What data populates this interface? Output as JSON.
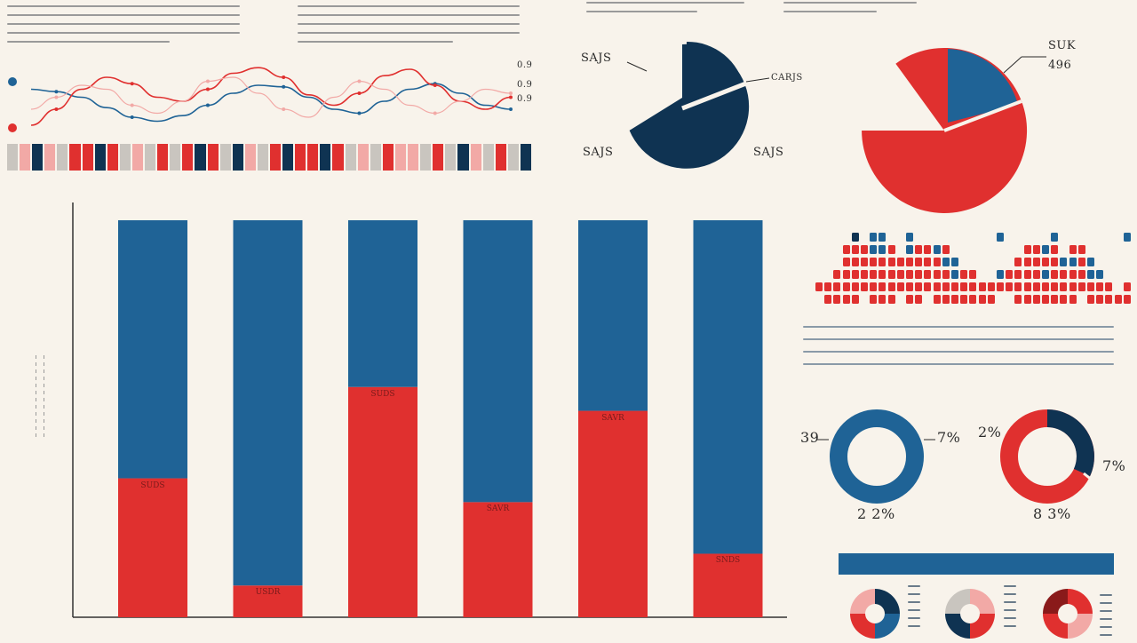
{
  "palette": {
    "navy": "#0f3352",
    "blue": "#1f6396",
    "red": "#e0302f",
    "pink": "#f2a9a6",
    "gray": "#c9c5bf",
    "bg": "#f8f3eb"
  },
  "chart_data": [
    {
      "type": "line",
      "id": "top-line-chart",
      "legend_markers": [
        "blue",
        "red"
      ],
      "legend_labels": [
        "0.9",
        "0.9",
        "0.9"
      ],
      "series": [
        {
          "color": "#1f6396",
          "values": [
            0.55,
            0.52,
            0.45,
            0.32,
            0.2,
            0.15,
            0.22,
            0.35,
            0.5,
            0.6,
            0.58,
            0.45,
            0.3,
            0.25,
            0.4,
            0.55,
            0.62,
            0.5,
            0.35,
            0.3
          ]
        },
        {
          "color": "#e0302f",
          "values": [
            0.1,
            0.3,
            0.55,
            0.7,
            0.62,
            0.45,
            0.4,
            0.55,
            0.75,
            0.82,
            0.7,
            0.48,
            0.35,
            0.5,
            0.72,
            0.8,
            0.6,
            0.4,
            0.3,
            0.45
          ]
        },
        {
          "color": "#f2a9a6",
          "values": [
            0.3,
            0.45,
            0.6,
            0.55,
            0.35,
            0.25,
            0.4,
            0.65,
            0.7,
            0.5,
            0.3,
            0.2,
            0.45,
            0.65,
            0.55,
            0.35,
            0.25,
            0.4,
            0.55,
            0.5
          ]
        }
      ]
    },
    {
      "type": "pie",
      "id": "pie-dark",
      "slices": [
        {
          "value": 0.86,
          "color": "#0f3352"
        },
        {
          "value": 0.14,
          "color": "#0f3352",
          "exploded": true
        }
      ],
      "labels": [
        "SAJS",
        "CARJS",
        "SAJS",
        "SAJS"
      ]
    },
    {
      "type": "pie",
      "id": "pie-red",
      "slices": [
        {
          "value": 0.82,
          "color": "#e0302f"
        },
        {
          "value": 0.18,
          "color": "#1f6396"
        }
      ],
      "labels": [
        "SUK",
        "496"
      ]
    },
    {
      "type": "bar",
      "id": "stacked-bar-chart",
      "stacked": true,
      "ylim": [
        0,
        100
      ],
      "series": [
        {
          "name": "",
          "color": "#e0302f",
          "values": [
            35,
            8,
            58,
            29,
            52,
            16
          ]
        },
        {
          "name": "",
          "color": "#1f6396",
          "values": [
            65,
            92,
            42,
            71,
            48,
            84
          ]
        }
      ],
      "bar_labels": [
        "SUDS",
        "USDR",
        "SUDS",
        "SAVR",
        "SAVR",
        "SNDS"
      ]
    },
    {
      "type": "pie",
      "id": "donut-blue",
      "donut": true,
      "slices": [
        {
          "value": 1.0,
          "color": "#1f6396"
        }
      ],
      "labels": [
        "39",
        "7%",
        "2 2%"
      ]
    },
    {
      "type": "pie",
      "id": "donut-red",
      "donut": true,
      "slices": [
        {
          "value": 0.72,
          "color": "#e0302f"
        },
        {
          "value": 0.28,
          "color": "#0f3352"
        }
      ],
      "labels": [
        "2%",
        "7%",
        "8 3%"
      ]
    }
  ]
}
